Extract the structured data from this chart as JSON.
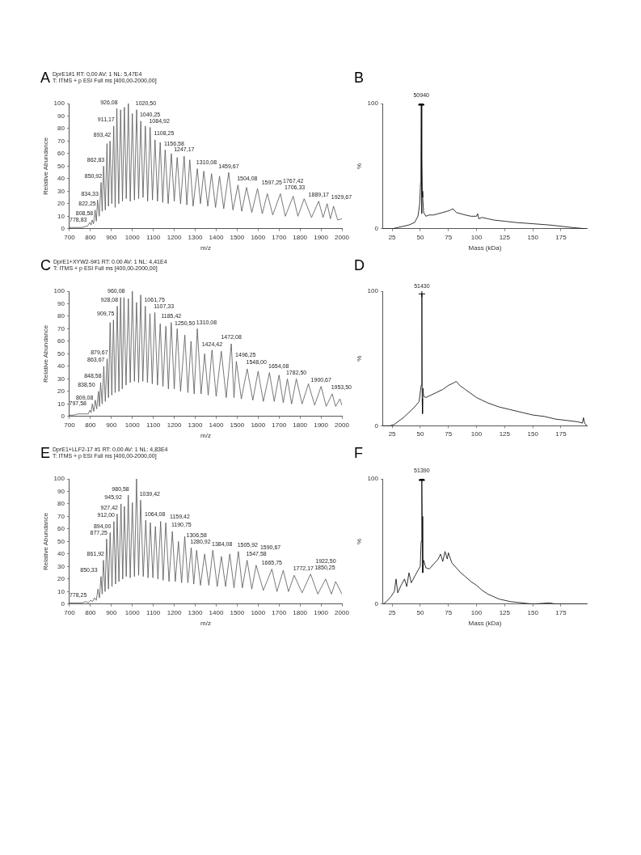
{
  "chart_data": [
    {
      "type": "line",
      "title": "A",
      "subtitle": "DprE1#1  RT: 0,00  AV: 1  NL: 5,47E4",
      "xlabel": "m/z",
      "ylabel": "Relative Abundance",
      "xlim": [
        700,
        2000
      ],
      "xticks": [
        700,
        800,
        900,
        1000,
        1100,
        1200,
        1300,
        1400,
        1500,
        1600,
        1700,
        1800,
        1900,
        2000
      ],
      "ylim": [
        0,
        100
      ],
      "yticks": [
        0,
        10,
        20,
        30,
        40,
        50,
        60,
        70,
        80,
        90,
        100
      ],
      "marker": "none",
      "series": [
        {
          "color": "#555555",
          "x": [
            700,
            720,
            740,
            760,
            778.83,
            785,
            797,
            803,
            808.58,
            815,
            822.25,
            828,
            834.33,
            842,
            850.92,
            856,
            862.83,
            871,
            879,
            886,
            893.42,
            902,
            911.17,
            918,
            926.08,
            935,
            944,
            953,
            962,
            971,
            981,
            990,
            1000,
            1010,
            1020.5,
            1030,
            1040.25,
            1051,
            1062,
            1073,
            1084.92,
            1096,
            1108.25,
            1120,
            1133,
            1145,
            1156.58,
            1171,
            1186,
            1200,
            1214,
            1230,
            1247.17,
            1260,
            1274,
            1290,
            1310.08,
            1325,
            1341,
            1360,
            1378,
            1397,
            1416,
            1436,
            1459.67,
            1480,
            1504.08,
            1522,
            1545,
            1570,
            1597.25,
            1620,
            1644,
            1670,
            1706.33,
            1730,
            1767.42,
            1790,
            1820,
            1855,
            1889.17,
            1910,
            1929.67,
            1945,
            1960,
            1980,
            2000
          ],
          "values": [
            1,
            1,
            1,
            1,
            2,
            2,
            5,
            3,
            7,
            4,
            15,
            6,
            23,
            10,
            37,
            14,
            50,
            15,
            68,
            18,
            70,
            20,
            82,
            17,
            96,
            20,
            95,
            22,
            97,
            24,
            100,
            22,
            92,
            23,
            95,
            24,
            86,
            25,
            82,
            22,
            81,
            23,
            71,
            22,
            69,
            21,
            63,
            20,
            60,
            22,
            57,
            20,
            58,
            19,
            55,
            18,
            48,
            20,
            46,
            18,
            44,
            17,
            42,
            16,
            45,
            15,
            35,
            14,
            33,
            13,
            32,
            12,
            28,
            11,
            28,
            10,
            26,
            10,
            24,
            9,
            22,
            9,
            20,
            8,
            18,
            7,
            8
          ]
        }
      ],
      "annotations": [
        "T: ITMS + p ESI Full ms [400,00-2000,00]",
        {
          "text": "778,83",
          "x": 778.83,
          "y": 2
        },
        {
          "text": "808,58",
          "x": 808.58,
          "y": 7
        },
        {
          "text": "822,25",
          "x": 822.25,
          "y": 15
        },
        {
          "text": "834,33",
          "x": 834.33,
          "y": 23
        },
        {
          "text": "850,92",
          "x": 850.92,
          "y": 37
        },
        {
          "text": "862,83",
          "x": 862.83,
          "y": 50
        },
        {
          "text": "893,42",
          "x": 893.42,
          "y": 70
        },
        {
          "text": "911,17",
          "x": 911.17,
          "y": 82
        },
        {
          "text": "926,08",
          "x": 926.08,
          "y": 96
        },
        {
          "text": "1020,50",
          "x": 1020.5,
          "y": 95
        },
        {
          "text": "1040,25",
          "x": 1040.25,
          "y": 86
        },
        {
          "text": "1084,92",
          "x": 1084.92,
          "y": 81
        },
        {
          "text": "1108,25",
          "x": 1108.25,
          "y": 71
        },
        {
          "text": "1156,58",
          "x": 1156.58,
          "y": 63
        },
        {
          "text": "1247,17",
          "x": 1247.17,
          "y": 58
        },
        {
          "text": "1310,08",
          "x": 1310.08,
          "y": 48
        },
        {
          "text": "1459,67",
          "x": 1459.67,
          "y": 45
        },
        {
          "text": "1504,08",
          "x": 1504.08,
          "y": 35
        },
        {
          "text": "1597,25",
          "x": 1597.25,
          "y": 32
        },
        {
          "text": "1706,33",
          "x": 1706.33,
          "y": 28
        },
        {
          "text": "1767,42",
          "x": 1767.42,
          "y": 26
        },
        {
          "text": "1889,17",
          "x": 1889.17,
          "y": 22
        },
        {
          "text": "1929,67",
          "x": 1929.67,
          "y": 20
        }
      ]
    },
    {
      "type": "line",
      "title": "B",
      "xlabel": "Mass (kDa)",
      "ylabel": "%",
      "xlim": [
        17,
        198
      ],
      "xticks": [
        25,
        50,
        75,
        100,
        125,
        150,
        175
      ],
      "ylim": [
        0,
        100
      ],
      "yticks": [
        0,
        100
      ],
      "marker": "none",
      "series": [
        {
          "color": "#000000",
          "x": [
            17,
            25,
            30,
            35,
            40,
            45,
            48,
            49.5,
            50.3,
            50.6,
            50.94,
            51.2,
            51.5,
            51.8,
            52.2,
            53,
            55,
            58,
            62,
            66,
            70,
            74,
            77,
            79,
            82,
            86,
            90,
            95,
            100,
            101,
            102,
            105,
            110,
            115,
            125,
            135,
            150,
            165,
            175,
            185,
            197
          ],
          "values": [
            0,
            0,
            1,
            2,
            3,
            5,
            10,
            20,
            37,
            55,
            100,
            12,
            55,
            30,
            25,
            13,
            10,
            11,
            11,
            12,
            13,
            14,
            15,
            16,
            13,
            12,
            11,
            10,
            10,
            12,
            8,
            9,
            8,
            7,
            6,
            5,
            4,
            3,
            2,
            1,
            0
          ]
        },
        {
          "type": "scatter",
          "marker": "triangle",
          "color": "#000000",
          "x": [
            50.94
          ],
          "values": [
            100
          ]
        }
      ],
      "annotations": [
        {
          "text": "50940",
          "x": 50.94,
          "y": 100
        }
      ]
    },
    {
      "type": "line",
      "title": "C",
      "subtitle": "DprE1+XYW2-9#1  RT: 0.00  AV: 1  NL: 4,41E4",
      "xlabel": "m/z",
      "ylabel": "Relative Abundance",
      "xlim": [
        700,
        2000
      ],
      "xticks": [
        700,
        800,
        900,
        1000,
        1100,
        1200,
        1300,
        1400,
        1500,
        1600,
        1700,
        1800,
        1900,
        2000
      ],
      "ylim": [
        0,
        100
      ],
      "yticks": [
        0,
        10,
        20,
        30,
        40,
        50,
        60,
        70,
        80,
        90,
        100
      ],
      "marker": "none",
      "series": [
        {
          "color": "#555555",
          "x": [
            700,
            720,
            740,
            760,
            780,
            790,
            797.58,
            803,
            809.08,
            816,
            823,
            830,
            838.5,
            843,
            848.58,
            856,
            863.67,
            871,
            879.67,
            886,
            894,
            902,
            909.75,
            918,
            928.08,
            936,
            944,
            952,
            960.08,
            970,
            981,
            990,
            1000,
            1010,
            1020,
            1030,
            1040,
            1050,
            1061.75,
            1072,
            1084,
            1095,
            1107.33,
            1120,
            1133,
            1146,
            1160,
            1172,
            1185.42,
            1200,
            1214,
            1230,
            1250.5,
            1265,
            1280,
            1295,
            1310.08,
            1328,
            1345,
            1362,
            1380,
            1400,
            1424.42,
            1448,
            1472.08,
            1485,
            1496.25,
            1520,
            1548,
            1575,
            1600,
            1625,
            1654.08,
            1677,
            1700,
            1720,
            1740,
            1760,
            1782.5,
            1810,
            1840,
            1870,
            1900.67,
            1925,
            1953.5,
            1970,
            1990,
            2000
          ],
          "values": [
            1,
            1,
            2,
            2,
            2,
            2,
            5,
            3,
            10,
            4,
            13,
            6,
            20,
            8,
            27,
            10,
            40,
            12,
            46,
            15,
            75,
            17,
            77,
            19,
            88,
            20,
            95,
            22,
            95,
            25,
            94,
            27,
            100,
            28,
            91,
            27,
            97,
            28,
            88,
            27,
            82,
            26,
            83,
            25,
            74,
            24,
            72,
            22,
            75,
            22,
            70,
            20,
            65,
            19,
            60,
            18,
            70,
            18,
            50,
            17,
            53,
            16,
            52,
            15,
            58,
            15,
            44,
            14,
            38,
            13,
            36,
            12,
            35,
            12,
            33,
            11,
            30,
            10,
            30,
            10,
            26,
            9,
            24,
            8,
            18,
            8,
            14,
            9
          ]
        }
      ],
      "annotations": [
        "T: ITMS + p ESI Full ms [400,00-2000,00]",
        {
          "text": "797,58",
          "x": 797.58,
          "y": 5
        },
        {
          "text": "809,08",
          "x": 809.08,
          "y": 10
        },
        {
          "text": "838,50",
          "x": 838.5,
          "y": 20
        },
        {
          "text": "848,58",
          "x": 848.58,
          "y": 27
        },
        {
          "text": "863,67",
          "x": 863.67,
          "y": 40
        },
        {
          "text": "879,67",
          "x": 879.67,
          "y": 46
        },
        {
          "text": "909,75",
          "x": 909.75,
          "y": 77
        },
        {
          "text": "928,08",
          "x": 928.08,
          "y": 88
        },
        {
          "text": "960,08",
          "x": 960.08,
          "y": 95
        },
        {
          "text": "1061,75",
          "x": 1061.75,
          "y": 88
        },
        {
          "text": "1107,33",
          "x": 1107.33,
          "y": 83
        },
        {
          "text": "1185,42",
          "x": 1185.42,
          "y": 75
        },
        {
          "text": "1250,50",
          "x": 1250.5,
          "y": 65
        },
        {
          "text": "1310,08",
          "x": 1310.08,
          "y": 70
        },
        {
          "text": "1424,42",
          "x": 1424.42,
          "y": 52
        },
        {
          "text": "1472,08",
          "x": 1472.08,
          "y": 58
        },
        {
          "text": "1496,25",
          "x": 1496.25,
          "y": 44
        },
        {
          "text": "1548,00",
          "x": 1548,
          "y": 38
        },
        {
          "text": "1654,08",
          "x": 1654.08,
          "y": 35
        },
        {
          "text": "1782,50",
          "x": 1782.5,
          "y": 30
        },
        {
          "text": "1900,67",
          "x": 1900.67,
          "y": 24
        },
        {
          "text": "1953,50",
          "x": 1953.5,
          "y": 18
        }
      ]
    },
    {
      "type": "line",
      "title": "D",
      "ylabel": "%",
      "xlim": [
        17,
        198
      ],
      "xticks": [
        25,
        50,
        75,
        100,
        125,
        150,
        175
      ],
      "ylim": [
        0,
        100
      ],
      "yticks": [
        0,
        100
      ],
      "marker": "none",
      "series": [
        {
          "color": "#000000",
          "x": [
            17,
            23,
            27,
            30,
            35,
            40,
            45,
            49,
            50.8,
            51.43,
            51.7,
            52,
            52.4,
            53,
            55,
            60,
            65,
            70,
            75,
            80,
            82,
            85,
            90,
            100,
            105,
            110,
            120,
            130,
            140,
            150,
            160,
            170,
            180,
            190,
            194,
            195,
            196,
            198
          ],
          "values": [
            0,
            0,
            1,
            3,
            6,
            10,
            14,
            18,
            30,
            98,
            20,
            9,
            28,
            22,
            21,
            23,
            25,
            27,
            30,
            32,
            33,
            30,
            27,
            21,
            19,
            17,
            14,
            12,
            10,
            8,
            7,
            5,
            4,
            3,
            2,
            6,
            2,
            0
          ]
        },
        {
          "type": "scatter",
          "marker": "cross",
          "color": "#000000",
          "x": [
            51.43
          ],
          "values": [
            98
          ]
        }
      ],
      "annotations": [
        {
          "text": "51430",
          "x": 51.43,
          "y": 98
        }
      ]
    },
    {
      "type": "line",
      "title": "E",
      "subtitle": "DprE1+LLF2-17 #1  RT: 0,00  AV: 1  NL: 4,83E4",
      "xlabel": "m/z",
      "ylabel": "Relative Abundance",
      "xlim": [
        700,
        2000
      ],
      "xticks": [
        700,
        800,
        900,
        1000,
        1100,
        1200,
        1300,
        1400,
        1500,
        1600,
        1700,
        1800,
        1900,
        2000
      ],
      "ylim": [
        0,
        100
      ],
      "yticks": [
        0,
        10,
        20,
        30,
        40,
        50,
        60,
        70,
        80,
        90,
        100
      ],
      "marker": "none",
      "series": [
        {
          "color": "#555555",
          "x": [
            700,
            720,
            740,
            760,
            778.25,
            790,
            800,
            810,
            820,
            828,
            836,
            843,
            850.33,
            856,
            861.92,
            870,
            877.25,
            886,
            894,
            903,
            912,
            920,
            927.42,
            936,
            945.92,
            954,
            962,
            971,
            980.58,
            990,
            1000,
            1010,
            1020,
            1030,
            1039.42,
            1052,
            1064.08,
            1075,
            1086,
            1098,
            1110,
            1122,
            1135,
            1147,
            1159.42,
            1175,
            1190.75,
            1205,
            1220,
            1235,
            1250,
            1265,
            1280.92,
            1293,
            1306.58,
            1325,
            1345,
            1365,
            1384.08,
            1405,
            1425,
            1445,
            1465,
            1485,
            1505.92,
            1525,
            1547.58,
            1570,
            1590.67,
            1625,
            1665.75,
            1690,
            1720,
            1745,
            1772.17,
            1810,
            1850.25,
            1885,
            1922.5,
            1950,
            1970,
            2000
          ],
          "values": [
            1,
            1,
            1,
            1,
            2,
            1,
            3,
            2,
            5,
            3,
            12,
            5,
            22,
            8,
            35,
            10,
            52,
            12,
            57,
            14,
            66,
            16,
            72,
            18,
            80,
            20,
            78,
            22,
            87,
            21,
            81,
            22,
            100,
            23,
            83,
            22,
            67,
            21,
            65,
            21,
            62,
            20,
            66,
            19,
            65,
            18,
            58,
            18,
            50,
            17,
            54,
            17,
            45,
            16,
            43,
            15,
            40,
            15,
            43,
            14,
            38,
            14,
            40,
            13,
            42,
            13,
            35,
            12,
            31,
            11,
            28,
            10,
            27,
            10,
            23,
            9,
            24,
            8,
            20,
            8,
            18,
            8
          ]
        }
      ],
      "annotations": [
        "T: ITMS + p ESI Full ms [400,00-2000,00]",
        {
          "text": "778,25",
          "x": 778.25,
          "y": 2
        },
        {
          "text": "850,33",
          "x": 850.33,
          "y": 22
        },
        {
          "text": "861,92",
          "x": 861.92,
          "y": 35
        },
        {
          "text": "877,25",
          "x": 877.25,
          "y": 52
        },
        {
          "text": "894,00",
          "x": 894,
          "y": 57
        },
        {
          "text": "912,00",
          "x": 912,
          "y": 66
        },
        {
          "text": "927,42",
          "x": 927.42,
          "y": 72
        },
        {
          "text": "945,92",
          "x": 945.92,
          "y": 80
        },
        {
          "text": "980,58",
          "x": 980.58,
          "y": 87
        },
        {
          "text": "1039,42",
          "x": 1039.42,
          "y": 83
        },
        {
          "text": "1064,08",
          "x": 1064.08,
          "y": 67
        },
        {
          "text": "1159,42",
          "x": 1159.42,
          "y": 65
        },
        {
          "text": "1190,75",
          "x": 1190.75,
          "y": 58
        },
        {
          "text": "1280,92",
          "x": 1280.92,
          "y": 45
        },
        {
          "text": "1306,58",
          "x": 1306.58,
          "y": 43
        },
        {
          "text": "1384,08",
          "x": 1384.08,
          "y": 43
        },
        {
          "text": "1505,92",
          "x": 1505.92,
          "y": 42
        },
        {
          "text": "1547,58",
          "x": 1547.58,
          "y": 35
        },
        {
          "text": "1590,67",
          "x": 1590.67,
          "y": 31
        },
        {
          "text": "1665,75",
          "x": 1665.75,
          "y": 28
        },
        {
          "text": "1772,17",
          "x": 1772.17,
          "y": 23
        },
        {
          "text": "1850,25",
          "x": 1850.25,
          "y": 24
        },
        {
          "text": "1922,50",
          "x": 1922.5,
          "y": 20
        }
      ]
    },
    {
      "type": "line",
      "title": "F",
      "xlabel": "Mass (kDa)",
      "ylabel": "%",
      "xlim": [
        17,
        198
      ],
      "xticks": [
        25,
        50,
        75,
        100,
        125,
        150,
        175
      ],
      "ylim": [
        0,
        100
      ],
      "yticks": [
        0,
        100
      ],
      "marker": "none",
      "series": [
        {
          "color": "#000000",
          "x": [
            17,
            20,
            24,
            27,
            28.5,
            30,
            33,
            36,
            38,
            40,
            42,
            45,
            48,
            50,
            50.8,
            51.39,
            51.7,
            52.2,
            53,
            55,
            58,
            62,
            66,
            68,
            70,
            72,
            74,
            75,
            78,
            82,
            86,
            90,
            95,
            100,
            105,
            110,
            120,
            130,
            140,
            150,
            165,
            170,
            180,
            198
          ],
          "values": [
            0,
            2,
            6,
            10,
            20,
            9,
            15,
            20,
            14,
            25,
            17,
            22,
            27,
            30,
            50,
            100,
            70,
            25,
            35,
            29,
            28,
            32,
            36,
            40,
            34,
            42,
            36,
            41,
            33,
            29,
            25,
            22,
            18,
            15,
            11,
            8,
            4,
            2,
            1,
            0,
            1,
            0,
            0,
            0
          ]
        },
        {
          "type": "scatter",
          "marker": "triangle",
          "color": "#000000",
          "x": [
            51.39
          ],
          "values": [
            100
          ]
        }
      ],
      "annotations": [
        {
          "text": "51390",
          "x": 51.39,
          "y": 100
        }
      ]
    }
  ]
}
